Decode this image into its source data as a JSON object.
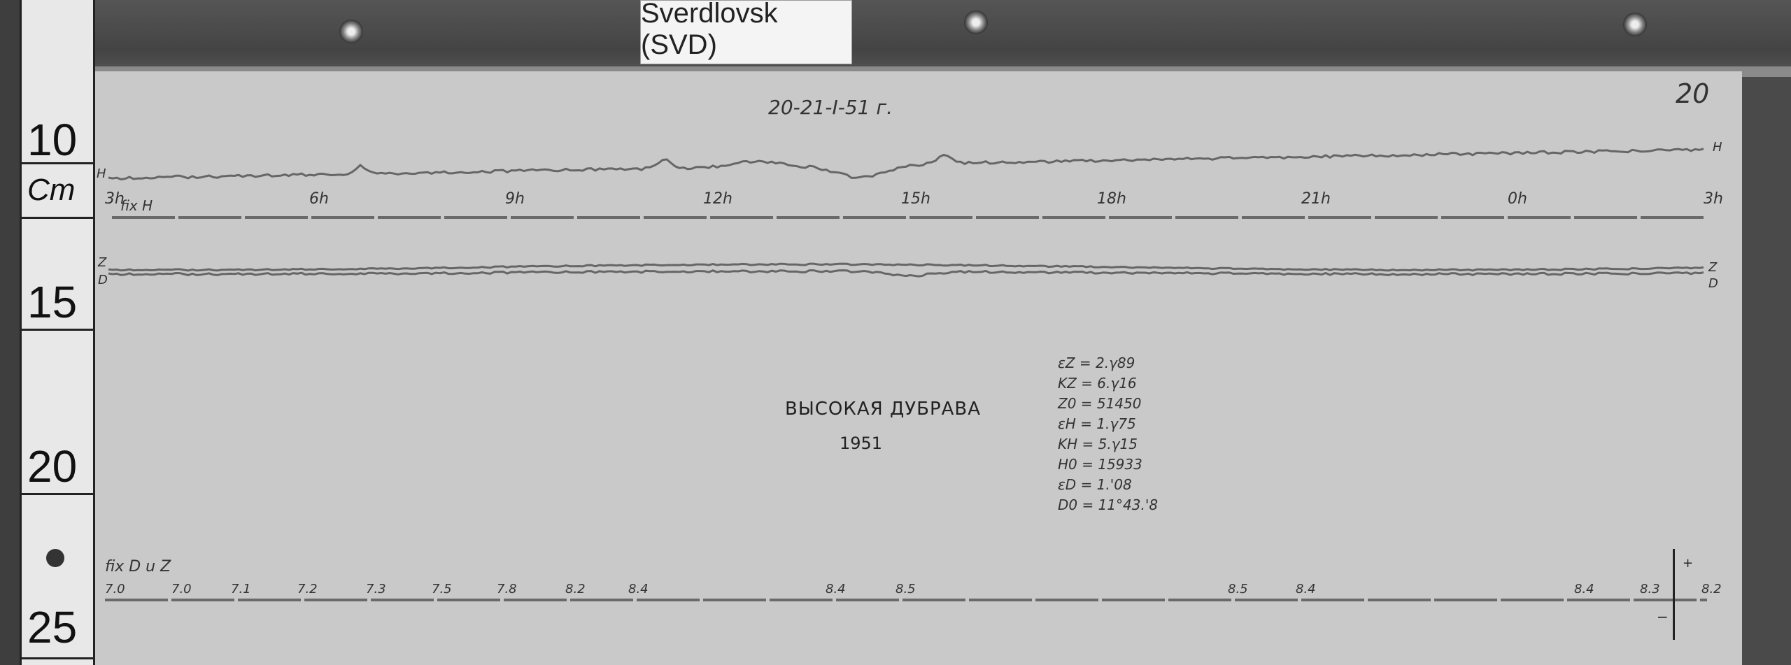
{
  "tag_label": "Sverdlovsk (SVD)",
  "sheet_number": "20",
  "date_note": "20-21-I-51 г.",
  "ruler": {
    "unit": "Cm",
    "marks": [
      "10",
      "15",
      "20",
      "25"
    ]
  },
  "traces": {
    "h_label": "H",
    "z_label": "Z",
    "d_label": "D",
    "fix_h_label": "fix H",
    "fix_dz_label": "fix D u Z"
  },
  "hour_marks": [
    "3h",
    "6h",
    "9h",
    "12h",
    "15h",
    "18h",
    "21h",
    "0h",
    "3h"
  ],
  "station": {
    "name": "ВЫСОКАЯ ДУБРАВА",
    "year": "1951"
  },
  "parameters": [
    "εZ = 2.γ89",
    "KZ = 6.γ16",
    "Z0 = 51450",
    "εH = 1.γ75",
    "KH = 5.γ15",
    "H0 = 15933",
    "εD = 1.'08",
    "D0 = 11°43.'8"
  ],
  "temperature_marks": [
    "7.0",
    "7.0",
    "7.1",
    "7.2",
    "7.3",
    "7.5",
    "7.8",
    "8.2",
    "8.4",
    "8.4",
    "8.5",
    "8.5",
    "8.4",
    "8.4",
    "8.3",
    "8.2"
  ],
  "arrow": {
    "plus": "+",
    "minus": "−"
  }
}
